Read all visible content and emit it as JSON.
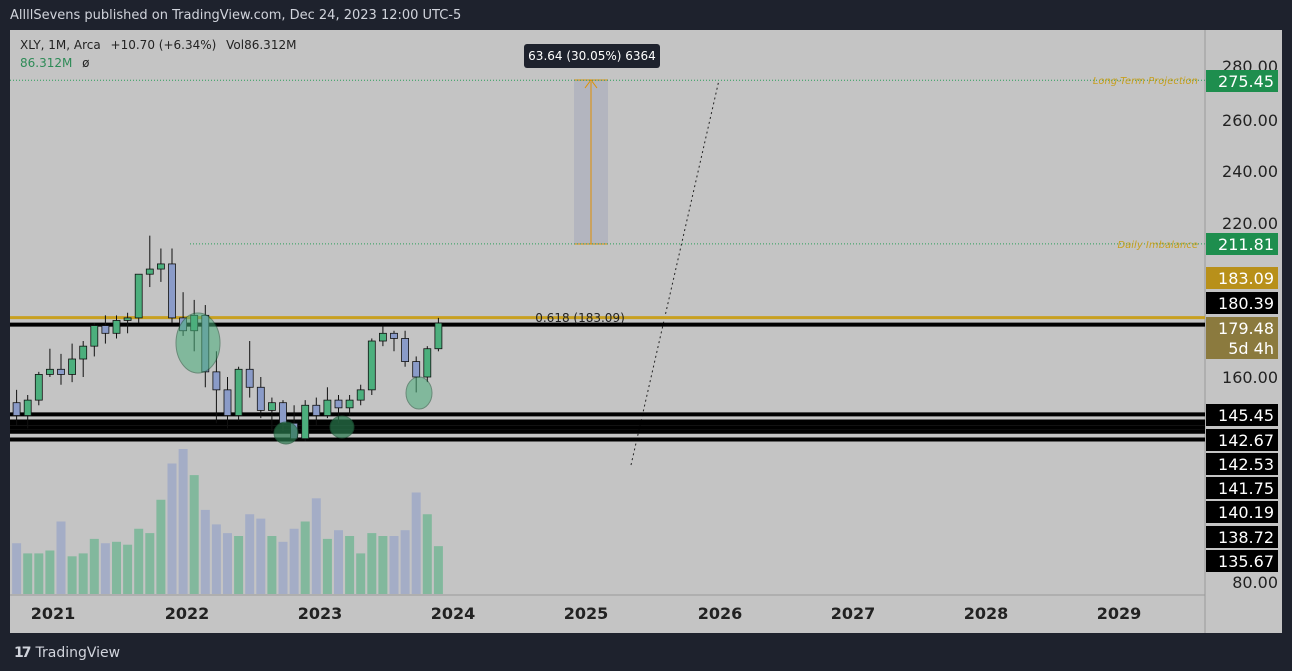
{
  "header": {
    "published": "AllllSevens published on TradingView.com, Dec 24, 2023 12:00 UTC-5"
  },
  "legend": {
    "symbol_line": "XLY, 1M, Arca",
    "change": "+10.70 (+6.34%)",
    "volume_label": "Vol86.312M",
    "volume_value": "86.312M",
    "volume_extra": "ø"
  },
  "measure": {
    "label": "63.64 (30.05%) 6364"
  },
  "annotations": {
    "long_term": "Long-Term Projection",
    "daily_imbalance": "Daily Imbalance",
    "fib": "0.618 (183.09)"
  },
  "price_axis": {
    "ticks": [
      "280.00",
      "260.00",
      "240.00",
      "220.00",
      "160.00",
      "80.00"
    ],
    "tags": [
      {
        "label": "275.45",
        "color": "#1e8e4e"
      },
      {
        "label": "211.81",
        "color": "#1e8e4e"
      },
      {
        "label": "183.09",
        "color": "#b8901a"
      },
      {
        "label": "180.39",
        "color": "#000000"
      },
      {
        "label": "179.48",
        "color": "#8b7a3e"
      },
      {
        "label": "5d 4h",
        "color": "#8b7a3e"
      },
      {
        "label": "145.45",
        "color": "#000000"
      },
      {
        "label": "142.67",
        "color": "#000000"
      },
      {
        "label": "142.53",
        "color": "#000000"
      },
      {
        "label": "141.75",
        "color": "#000000"
      },
      {
        "label": "140.19",
        "color": "#000000"
      },
      {
        "label": "138.72",
        "color": "#000000"
      },
      {
        "label": "135.67",
        "color": "#000000"
      }
    ]
  },
  "time_axis": {
    "labels": [
      "2021",
      "2022",
      "2023",
      "2024",
      "2025",
      "2026",
      "2027",
      "2028",
      "2029"
    ]
  },
  "footer": {
    "brand": "TradingView"
  },
  "colors": {
    "up": "#4caf7d",
    "down": "#8a9bc8",
    "gold": "#c8a020",
    "background": "#c4c4c4"
  },
  "chart_data": {
    "type": "candlestick",
    "symbol": "XLY",
    "interval": "1M",
    "ylim": [
      80,
      290
    ],
    "candles": [
      {
        "o": 150,
        "h": 155,
        "l": 141,
        "c": 145
      },
      {
        "o": 145,
        "h": 153,
        "l": 140,
        "c": 151
      },
      {
        "o": 151,
        "h": 162,
        "l": 149,
        "c": 161
      },
      {
        "o": 161,
        "h": 171,
        "l": 160,
        "c": 163
      },
      {
        "o": 163,
        "h": 169,
        "l": 157,
        "c": 161
      },
      {
        "o": 161,
        "h": 173,
        "l": 158,
        "c": 167
      },
      {
        "o": 167,
        "h": 174,
        "l": 160,
        "c": 172
      },
      {
        "o": 172,
        "h": 181,
        "l": 168,
        "c": 180
      },
      {
        "o": 180,
        "h": 184,
        "l": 173,
        "c": 177
      },
      {
        "o": 177,
        "h": 184,
        "l": 175,
        "c": 182
      },
      {
        "o": 182,
        "h": 185,
        "l": 177,
        "c": 183
      },
      {
        "o": 183,
        "h": 200,
        "l": 181,
        "c": 200
      },
      {
        "o": 200,
        "h": 215,
        "l": 195,
        "c": 202
      },
      {
        "o": 202,
        "h": 210,
        "l": 197,
        "c": 204
      },
      {
        "o": 204,
        "h": 210,
        "l": 181,
        "c": 183
      },
      {
        "o": 183,
        "h": 193,
        "l": 176,
        "c": 178
      },
      {
        "o": 178,
        "h": 190,
        "l": 170,
        "c": 184
      },
      {
        "o": 184,
        "h": 188,
        "l": 156,
        "c": 162
      },
      {
        "o": 162,
        "h": 170,
        "l": 142,
        "c": 155
      },
      {
        "o": 155,
        "h": 160,
        "l": 140,
        "c": 145
      },
      {
        "o": 145,
        "h": 164,
        "l": 143,
        "c": 163
      },
      {
        "o": 163,
        "h": 174,
        "l": 152,
        "c": 156
      },
      {
        "o": 156,
        "h": 160,
        "l": 144,
        "c": 147
      },
      {
        "o": 147,
        "h": 152,
        "l": 139,
        "c": 150
      },
      {
        "o": 150,
        "h": 151,
        "l": 139,
        "c": 142
      },
      {
        "o": 142,
        "h": 149,
        "l": 135,
        "c": 136
      },
      {
        "o": 136,
        "h": 151,
        "l": 135,
        "c": 149
      },
      {
        "o": 149,
        "h": 152,
        "l": 141,
        "c": 145
      },
      {
        "o": 145,
        "h": 156,
        "l": 144,
        "c": 151
      },
      {
        "o": 151,
        "h": 153,
        "l": 142,
        "c": 148
      },
      {
        "o": 148,
        "h": 153,
        "l": 145,
        "c": 151
      },
      {
        "o": 151,
        "h": 157,
        "l": 149,
        "c": 155
      },
      {
        "o": 155,
        "h": 175,
        "l": 153,
        "c": 174
      },
      {
        "o": 174,
        "h": 180,
        "l": 172,
        "c": 177
      },
      {
        "o": 177,
        "h": 178,
        "l": 170,
        "c": 175
      },
      {
        "o": 175,
        "h": 178,
        "l": 164,
        "c": 166
      },
      {
        "o": 166,
        "h": 168,
        "l": 154,
        "c": 160
      },
      {
        "o": 160,
        "h": 172,
        "l": 158,
        "c": 171
      },
      {
        "o": 171,
        "h": 183,
        "l": 170,
        "c": 181
      }
    ],
    "volume_heights": [
      0.35,
      0.28,
      0.28,
      0.3,
      0.5,
      0.26,
      0.28,
      0.38,
      0.35,
      0.36,
      0.34,
      0.45,
      0.42,
      0.65,
      0.9,
      1.0,
      0.82,
      0.58,
      0.48,
      0.42,
      0.4,
      0.55,
      0.52,
      0.4,
      0.36,
      0.45,
      0.5,
      0.66,
      0.38,
      0.44,
      0.4,
      0.28,
      0.42,
      0.4,
      0.4,
      0.44,
      0.7,
      0.55,
      0.33
    ],
    "levels": [
      {
        "label": "275.45",
        "value": 275.45,
        "style": "dotted-green"
      },
      {
        "label": "211.81",
        "value": 211.81,
        "style": "dotted-green"
      },
      {
        "label": "0.618 (183.09)",
        "value": 183.09,
        "style": "gold"
      },
      {
        "label": "180.39",
        "value": 180.39,
        "style": "black"
      },
      {
        "label": "145.45",
        "value": 145.45,
        "style": "black"
      },
      {
        "label": "142.67",
        "value": 142.67,
        "style": "black"
      },
      {
        "label": "142.53",
        "value": 142.53,
        "style": "black"
      },
      {
        "label": "141.75",
        "value": 141.75,
        "style": "black"
      },
      {
        "label": "140.19",
        "value": 140.19,
        "style": "black"
      },
      {
        "label": "138.72",
        "value": 138.72,
        "style": "black"
      },
      {
        "label": "135.67",
        "value": 135.67,
        "style": "black"
      }
    ]
  }
}
